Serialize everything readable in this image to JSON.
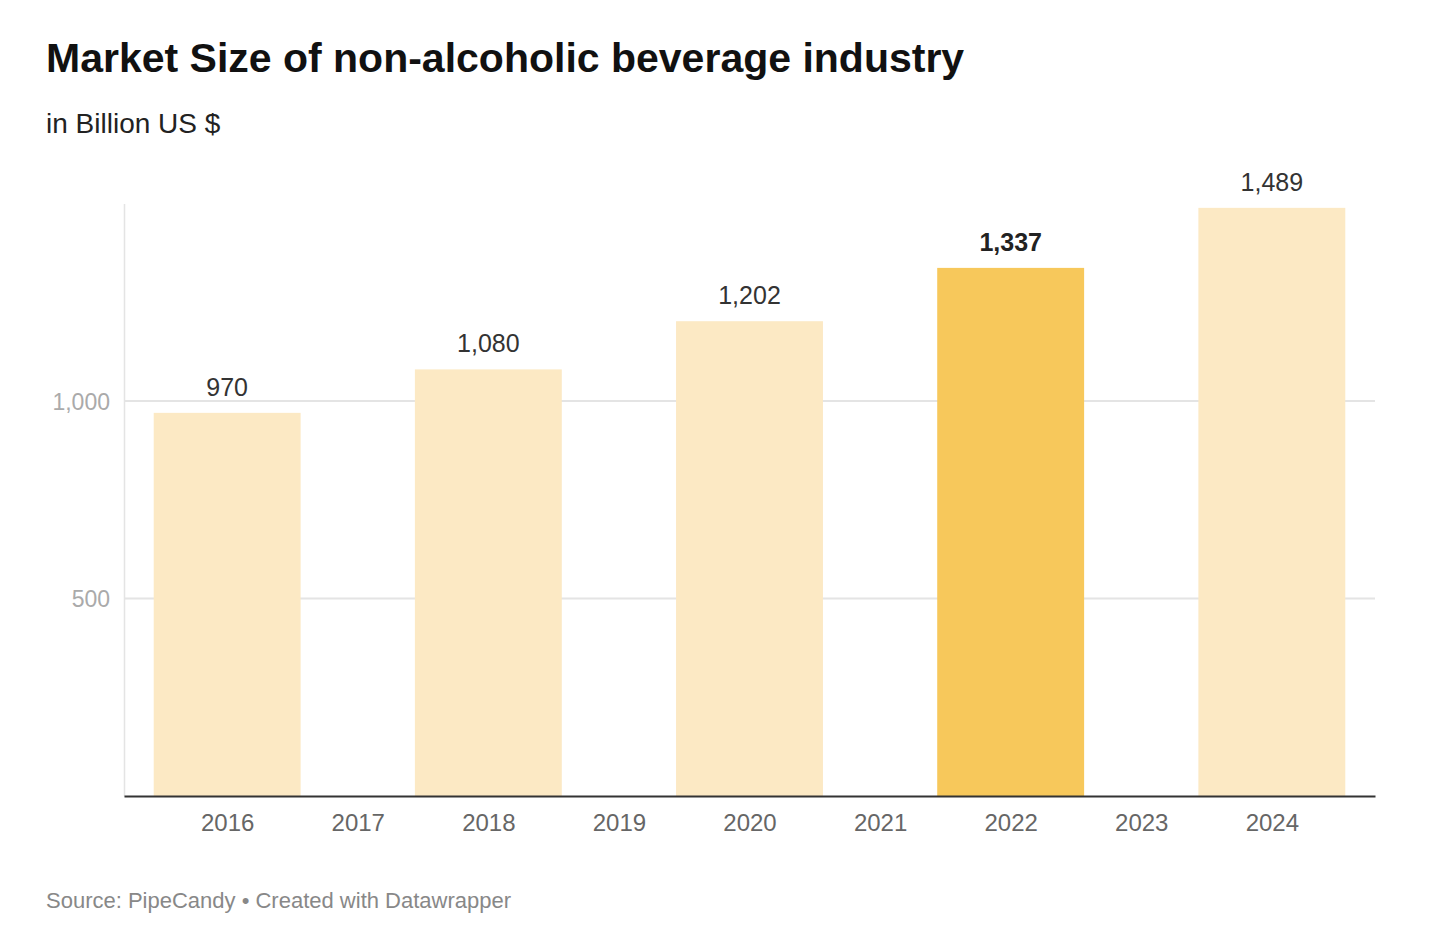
{
  "chart_data": {
    "type": "bar",
    "title": "Market Size of non-alcoholic beverage industry",
    "subtitle": "in Billion US $",
    "source": "Source: PipeCandy • Created with Datawrapper",
    "categories": [
      "2016",
      "2017",
      "2018",
      "2019",
      "2020",
      "2021",
      "2022",
      "2023",
      "2024"
    ],
    "values": [
      970,
      null,
      1080,
      null,
      1202,
      null,
      1337,
      null,
      1489
    ],
    "value_labels": [
      "970",
      null,
      "1,080",
      null,
      "1,202",
      null,
      "1,337",
      null,
      "1,489"
    ],
    "colors": [
      "#fce9c4",
      null,
      "#fce9c4",
      null,
      "#fce9c4",
      null,
      "#f7c85b",
      null,
      "#fce9c4"
    ],
    "ylim": [
      0,
      1500
    ],
    "yticks": [
      500,
      {
        "value": 1000,
        "label": "1,000"
      }
    ],
    "grid": true,
    "data_labels": true
  }
}
